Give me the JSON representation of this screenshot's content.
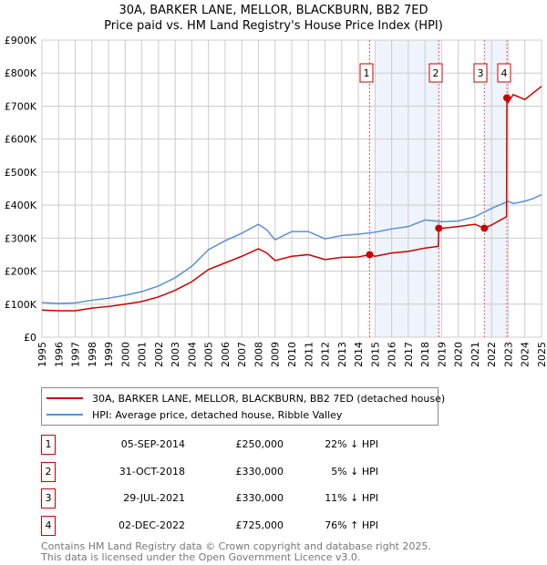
{
  "chart_data": {
    "type": "line",
    "title": "30A, BARKER LANE, MELLOR, BLACKBURN, BB2 7ED",
    "subtitle": "Price paid vs. HM Land Registry's House Price Index (HPI)",
    "xlim": [
      1995,
      2025
    ],
    "ylim": [
      0,
      900000
    ],
    "x_ticks": [
      "1995",
      "1996",
      "1997",
      "1998",
      "1999",
      "2000",
      "2001",
      "2002",
      "2003",
      "2004",
      "2005",
      "2006",
      "2007",
      "2008",
      "2009",
      "2010",
      "2011",
      "2012",
      "2013",
      "2014",
      "2015",
      "2016",
      "2017",
      "2018",
      "2019",
      "2020",
      "2021",
      "2022",
      "2023",
      "2024",
      "2025"
    ],
    "y_ticks": [
      {
        "v": 0,
        "label": "£0"
      },
      {
        "v": 100000,
        "label": "£100K"
      },
      {
        "v": 200000,
        "label": "£200K"
      },
      {
        "v": 300000,
        "label": "£300K"
      },
      {
        "v": 400000,
        "label": "£400K"
      },
      {
        "v": 500000,
        "label": "£500K"
      },
      {
        "v": 600000,
        "label": "£600K"
      },
      {
        "v": 700000,
        "label": "£700K"
      },
      {
        "v": 800000,
        "label": "£800K"
      },
      {
        "v": 900000,
        "label": "£900K"
      }
    ],
    "grid": true,
    "shaded_ranges": [
      [
        2015.0,
        2018.9
      ],
      [
        2021.6,
        2022.95
      ]
    ],
    "series": [
      {
        "name": "30A, BARKER LANE, MELLOR, BLACKBURN, BB2 7ED (detached house)",
        "color": "#cc0000",
        "x": [
          1995,
          1996,
          1997,
          1998,
          1999,
          2000,
          2001,
          2002,
          2003,
          2004,
          2005,
          2006,
          2007,
          2008,
          2008.5,
          2009,
          2010,
          2011,
          2012,
          2013,
          2014,
          2014.68,
          2015,
          2016,
          2017,
          2018,
          2018.8,
          2018.83,
          2019,
          2020,
          2021,
          2021.57,
          2022,
          2022.9,
          2022.92,
          2023,
          2023.3,
          2024,
          2024.5,
          2025
        ],
        "y": [
          82000,
          80000,
          80000,
          88000,
          93000,
          100000,
          108000,
          122000,
          142000,
          168000,
          205000,
          225000,
          245000,
          268000,
          255000,
          232000,
          245000,
          250000,
          235000,
          242000,
          243000,
          250000,
          245000,
          255000,
          260000,
          270000,
          275000,
          330000,
          330000,
          335000,
          342000,
          330000,
          340000,
          365000,
          725000,
          712000,
          735000,
          720000,
          740000,
          760000
        ]
      },
      {
        "name": "HPI: Average price, detached house, Ribble Valley",
        "color": "#5b8fd4",
        "x": [
          1995,
          1996,
          1997,
          1998,
          1999,
          2000,
          2001,
          2002,
          2003,
          2004,
          2005,
          2006,
          2007,
          2008,
          2008.5,
          2009,
          2010,
          2011,
          2012,
          2013,
          2014,
          2015,
          2016,
          2017,
          2018,
          2019,
          2020,
          2021,
          2022,
          2023,
          2023.3,
          2024,
          2024.5,
          2025
        ],
        "y": [
          105000,
          102000,
          104000,
          112000,
          118000,
          127000,
          138000,
          155000,
          180000,
          215000,
          265000,
          292000,
          315000,
          342000,
          325000,
          295000,
          320000,
          320000,
          298000,
          308000,
          312000,
          318000,
          328000,
          335000,
          355000,
          350000,
          352000,
          365000,
          390000,
          412000,
          405000,
          412000,
          420000,
          432000
        ]
      }
    ],
    "sales": [
      {
        "num": "1",
        "x": 2014.68,
        "y": 250000,
        "date": "05-SEP-2014",
        "price": "£250,000",
        "hpi": "22% ↓ HPI"
      },
      {
        "num": "2",
        "x": 2018.83,
        "y": 330000,
        "date": "31-OCT-2018",
        "price": "£330,000",
        "hpi": "5% ↓ HPI"
      },
      {
        "num": "3",
        "x": 2021.57,
        "y": 330000,
        "date": "29-JUL-2021",
        "price": "£330,000",
        "hpi": "11% ↓ HPI"
      },
      {
        "num": "4",
        "x": 2022.92,
        "y": 725000,
        "date": "02-DEC-2022",
        "price": "£725,000",
        "hpi": "76% ↑ HPI"
      }
    ],
    "legend_position": "below"
  },
  "footer": {
    "line1": "Contains HM Land Registry data © Crown copyright and database right 2025.",
    "line2": "This data is licensed under the Open Government Licence v3.0."
  }
}
